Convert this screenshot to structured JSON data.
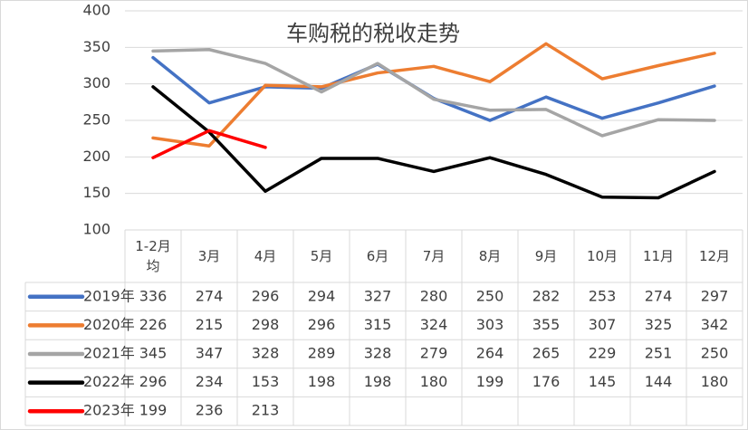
{
  "chart_data": {
    "type": "line",
    "title": "车购税的税收走势",
    "categories": [
      "1-2月均",
      "3月",
      "4月",
      "5月",
      "6月",
      "7月",
      "8月",
      "9月",
      "10月",
      "11月",
      "12月"
    ],
    "series": [
      {
        "name": "2019年",
        "color": "#4472c4",
        "values": [
          336,
          274,
          296,
          294,
          327,
          280,
          250,
          282,
          253,
          274,
          297
        ]
      },
      {
        "name": "2020年",
        "color": "#ed7d31",
        "values": [
          226,
          215,
          298,
          296,
          315,
          324,
          303,
          355,
          307,
          325,
          342
        ]
      },
      {
        "name": "2021年",
        "color": "#a5a5a5",
        "values": [
          345,
          347,
          328,
          289,
          328,
          279,
          264,
          265,
          229,
          251,
          250
        ]
      },
      {
        "name": "2022年",
        "color": "#000000",
        "values": [
          296,
          234,
          153,
          198,
          198,
          180,
          199,
          176,
          145,
          144,
          180
        ]
      },
      {
        "name": "2023年",
        "color": "#ff0000",
        "values": [
          199,
          236,
          213,
          null,
          null,
          null,
          null,
          null,
          null,
          null,
          null
        ]
      }
    ],
    "ylim": [
      100,
      400
    ],
    "yticks": [
      100,
      150,
      200,
      250,
      300,
      350,
      400
    ],
    "grid": true
  }
}
